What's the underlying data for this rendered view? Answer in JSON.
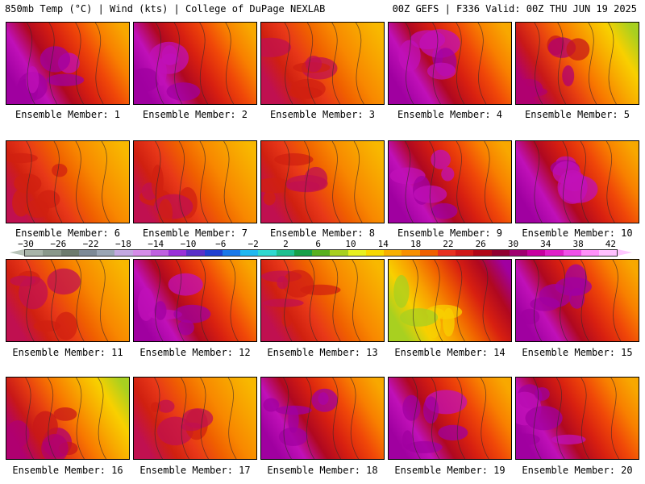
{
  "header": {
    "left": "850mb Temp (°C) | Wind (kts) | College of DuPage NEXLAB",
    "right": "00Z GEFS | F336 Valid: 00Z THU JUN 19 2025"
  },
  "members": [
    {
      "label": "Ensemble Member: 1",
      "scheme": "hot"
    },
    {
      "label": "Ensemble Member: 2",
      "scheme": "hot"
    },
    {
      "label": "Ensemble Member: 3",
      "scheme": "warm"
    },
    {
      "label": "Ensemble Member: 4",
      "scheme": "hot"
    },
    {
      "label": "Ensemble Member: 5",
      "scheme": "coolne"
    },
    {
      "label": "Ensemble Member: 6",
      "scheme": "warm"
    },
    {
      "label": "Ensemble Member: 7",
      "scheme": "warm"
    },
    {
      "label": "Ensemble Member: 8",
      "scheme": "warm"
    },
    {
      "label": "Ensemble Member: 9",
      "scheme": "hot"
    },
    {
      "label": "Ensemble Member: 10",
      "scheme": "hot"
    },
    {
      "label": "Ensemble Member: 11",
      "scheme": "warm"
    },
    {
      "label": "Ensemble Member: 12",
      "scheme": "hot"
    },
    {
      "label": "Ensemble Member: 13",
      "scheme": "warm"
    },
    {
      "label": "Ensemble Member: 14",
      "scheme": "coolnw"
    },
    {
      "label": "Ensemble Member: 15",
      "scheme": "hot"
    },
    {
      "label": "Ensemble Member: 16",
      "scheme": "coolne"
    },
    {
      "label": "Ensemble Member: 17",
      "scheme": "warm"
    },
    {
      "label": "Ensemble Member: 18",
      "scheme": "hot"
    },
    {
      "label": "Ensemble Member: 19",
      "scheme": "hot"
    },
    {
      "label": "Ensemble Member: 20",
      "scheme": "hot"
    }
  ],
  "colorbar": {
    "ticks": [
      "−30",
      "−26",
      "−22",
      "−18",
      "−14",
      "−10",
      "−6",
      "−2",
      "2",
      "6",
      "10",
      "14",
      "18",
      "22",
      "26",
      "30",
      "34",
      "38",
      "42"
    ],
    "colors": [
      "#a8b4a8",
      "#8a988a",
      "#6e7c6e",
      "#7d8a96",
      "#9aa6b4",
      "#c3a8e0",
      "#d58ce8",
      "#c060e0",
      "#9a30d8",
      "#5a30c8",
      "#2040d0",
      "#1a78e8",
      "#20b8f0",
      "#30d8d0",
      "#20c090",
      "#18a048",
      "#58b020",
      "#a8d020",
      "#e8f020",
      "#f8d800",
      "#f8b000",
      "#f89000",
      "#f06000",
      "#e83020",
      "#d01818",
      "#b00818",
      "#900030",
      "#a00070",
      "#c800a0",
      "#e020c8",
      "#f050e8",
      "#ff90f8",
      "#ffc0ff"
    ]
  }
}
